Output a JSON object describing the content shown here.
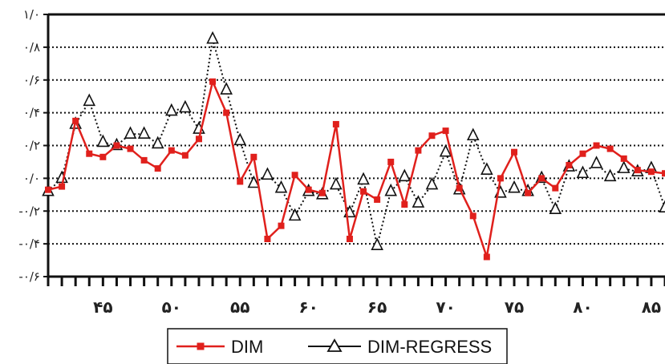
{
  "chart_data": {
    "type": "line",
    "x_tick_labels": [
      "۴۵",
      "۵۰",
      "۵۵",
      "۶۰",
      "۶۵",
      "۷۰",
      "۷۵",
      "۸۰",
      "۸۵"
    ],
    "x_ticks": [
      45,
      50,
      55,
      60,
      65,
      70,
      75,
      80,
      85
    ],
    "y_tick_labels": [
      "۱/۰",
      "۰/۸",
      "۰/۶",
      "۰/۴",
      "۰/۲",
      "۰/۰",
      "-۰/۲",
      "-۰/۴",
      "-۰/۶"
    ],
    "y_ticks": [
      1.0,
      0.8,
      0.6,
      0.4,
      0.2,
      0.0,
      -0.2,
      -0.4,
      -0.6
    ],
    "xlim": [
      41,
      86
    ],
    "ylim": [
      -0.6,
      1.0
    ],
    "grid": true,
    "legend_position": "bottom",
    "x": [
      41,
      42,
      43,
      44,
      45,
      46,
      47,
      48,
      49,
      50,
      51,
      52,
      53,
      54,
      55,
      56,
      57,
      58,
      59,
      60,
      61,
      62,
      63,
      64,
      65,
      66,
      67,
      68,
      69,
      70,
      71,
      72,
      73,
      74,
      75,
      76,
      77,
      78,
      79,
      80,
      81,
      82,
      83,
      84,
      85,
      86
    ],
    "series": [
      {
        "name": "DIM",
        "color": "#e0201c",
        "marker": "square",
        "line_style": "solid",
        "values": [
          -0.07,
          -0.05,
          0.35,
          0.15,
          0.13,
          0.2,
          0.18,
          0.11,
          0.06,
          0.17,
          0.14,
          0.24,
          0.59,
          0.4,
          -0.02,
          0.13,
          -0.37,
          -0.29,
          0.02,
          -0.07,
          -0.09,
          0.33,
          -0.37,
          -0.08,
          -0.13,
          0.1,
          -0.16,
          0.17,
          0.26,
          0.29,
          -0.06,
          -0.23,
          -0.48,
          0.0,
          0.16,
          -0.09,
          0.0,
          -0.06,
          0.08,
          0.15,
          0.2,
          0.18,
          0.12,
          0.05,
          0.04,
          0.03
        ]
      },
      {
        "name": "DIM-REGRESS",
        "color": "#111111",
        "marker": "triangle-open",
        "line_style": "dotted",
        "values": [
          -0.08,
          0.0,
          0.33,
          0.47,
          0.22,
          0.2,
          0.27,
          0.27,
          0.21,
          0.41,
          0.43,
          0.3,
          0.85,
          0.54,
          0.23,
          -0.03,
          0.02,
          -0.06,
          -0.23,
          -0.08,
          -0.1,
          -0.04,
          -0.21,
          -0.01,
          -0.41,
          -0.08,
          0.01,
          -0.15,
          -0.04,
          0.16,
          -0.07,
          0.26,
          0.05,
          -0.09,
          -0.06,
          -0.08,
          0.0,
          -0.19,
          0.07,
          0.03,
          0.09,
          0.01,
          0.06,
          0.04,
          0.06,
          -0.18
        ]
      }
    ]
  }
}
